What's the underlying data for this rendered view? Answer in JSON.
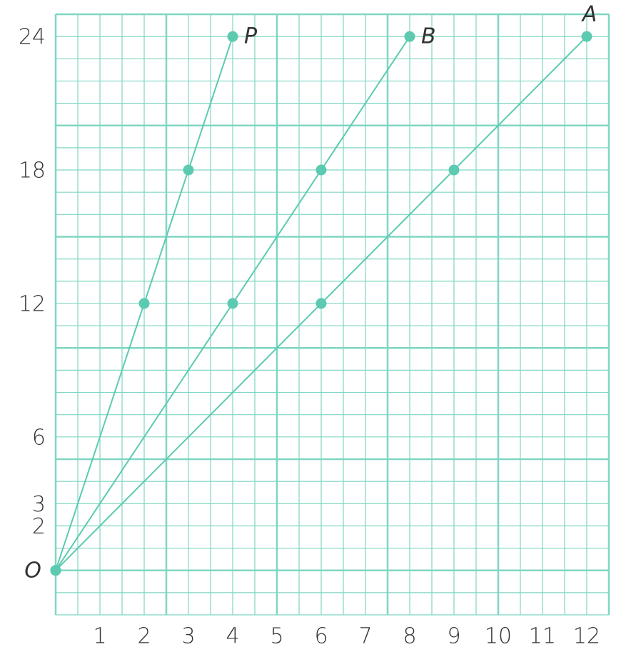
{
  "chart_data": {
    "type": "line",
    "origin_label": "O",
    "color": "#5ccab1",
    "grid": true,
    "xlim": [
      0,
      12.5
    ],
    "ylim": [
      -2,
      25
    ],
    "xticks": [
      1,
      2,
      3,
      4,
      5,
      6,
      7,
      8,
      9,
      10,
      11,
      12
    ],
    "yticks": [
      2,
      3,
      6,
      12,
      18,
      24
    ],
    "series": [
      {
        "name": "P",
        "x": [
          0,
          2,
          3,
          4
        ],
        "values": [
          0,
          12,
          18,
          24
        ]
      },
      {
        "name": "B",
        "x": [
          0,
          4,
          6,
          8
        ],
        "values": [
          0,
          12,
          18,
          24
        ]
      },
      {
        "name": "A",
        "x": [
          0,
          6,
          9,
          12
        ],
        "values": [
          0,
          12,
          18,
          24
        ]
      }
    ]
  }
}
